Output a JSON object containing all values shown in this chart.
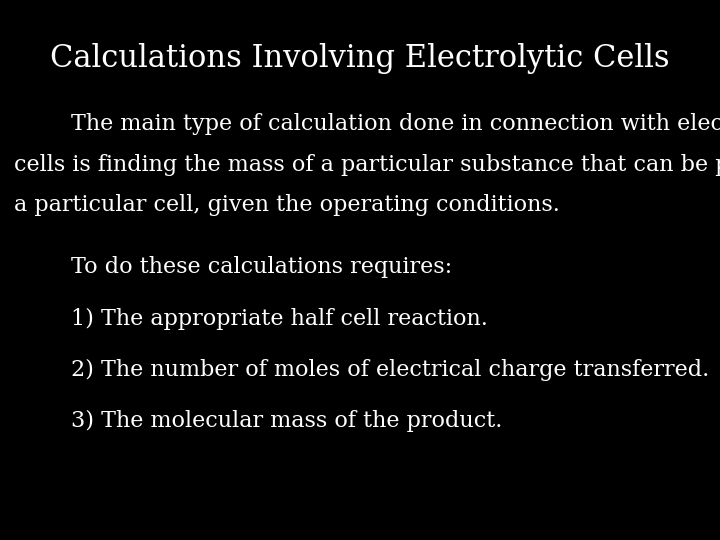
{
  "background_color": "#000000",
  "text_color": "#ffffff",
  "title": "Calculations Involving Electrolytic Cells",
  "title_fontsize": 22,
  "title_family": "serif",
  "paragraph_line1": "        The main type of calculation done in connection with electrolytic",
  "paragraph_line2": "cells is finding the mass of a particular substance that can be produced in",
  "paragraph_line3": "a particular cell, given the operating conditions.",
  "paragraph_fontsize": 16,
  "paragraph_family": "serif",
  "sub_intro": "        To do these calculations requires:",
  "sub_intro_fontsize": 16,
  "sub_intro_family": "serif",
  "items": [
    "        1) The appropriate half cell reaction.",
    "        2) The number of moles of electrical charge transferred.",
    "        3) The molecular mass of the product."
  ],
  "items_fontsize": 16,
  "items_family": "serif"
}
